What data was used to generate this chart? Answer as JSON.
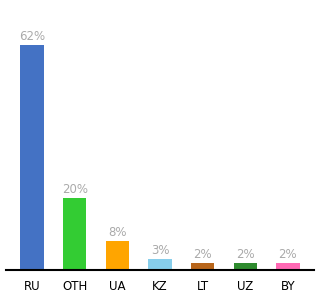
{
  "categories": [
    "RU",
    "OTH",
    "UA",
    "KZ",
    "LT",
    "UZ",
    "BY"
  ],
  "values": [
    62,
    20,
    8,
    3,
    2,
    2,
    2
  ],
  "labels": [
    "62%",
    "20%",
    "8%",
    "3%",
    "2%",
    "2%",
    "2%"
  ],
  "bar_colors": [
    "#4472C4",
    "#33CC33",
    "#FFA500",
    "#87CEEB",
    "#B8651A",
    "#2E8B2E",
    "#FF69B4"
  ],
  "ylim": [
    0,
    72
  ],
  "background_color": "#ffffff",
  "label_fontsize": 8.5,
  "tick_fontsize": 8.5,
  "label_color": "#aaaaaa",
  "bar_width": 0.55
}
